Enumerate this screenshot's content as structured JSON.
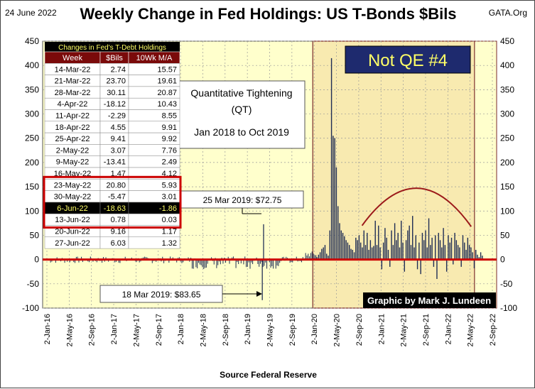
{
  "header": {
    "date": "24 June 2022",
    "title": "Weekly Change in Fed Holdings:  US T-Bonds $Bils",
    "source_tag": "GATA.Org"
  },
  "footer": {
    "source": "Source  Federal Reserve"
  },
  "colors": {
    "plot_background": "#ffffcc",
    "qe_background": "#f8eab0",
    "bars": "#1f2d55",
    "zero_line": "#cc0000",
    "arc": "#9c1a1a",
    "highlight_border": "#cc0000",
    "label_box_fill": "#1e2a6e",
    "label_box_text": "#ffff66"
  },
  "chart_data": {
    "type": "bar",
    "title": "Weekly Change in Fed Holdings:  US T-Bonds $Bils",
    "ylim": [
      -100,
      450
    ],
    "yticks": [
      -100,
      -50,
      0,
      50,
      100,
      150,
      200,
      250,
      300,
      350,
      400,
      450
    ],
    "x_tick_labels": [
      "2-Jan-16",
      "2-May-16",
      "2-Sep-16",
      "2-Jan-17",
      "2-May-17",
      "2-Sep-17",
      "2-Jan-18",
      "2-May-18",
      "2-Sep-18",
      "2-Jan-19",
      "2-May-19",
      "2-Sep-19",
      "2-Jan-20",
      "2-May-20",
      "2-Sep-20",
      "2-Jan-21",
      "2-May-21",
      "2-Sep-21",
      "2-Jan-22",
      "2-May-22",
      "2-Sep-22"
    ],
    "grid": true,
    "xlabel": "Source  Federal Reserve",
    "notable_weeks": [
      {
        "week": "18 Mar 2019",
        "value": -83.65
      },
      {
        "week": "25 Mar 2019",
        "value": 72.75
      }
    ],
    "covid_qe_values": [
      5,
      10,
      15,
      22,
      25,
      30,
      12,
      8,
      60,
      415,
      255,
      250,
      190,
      110,
      75,
      60,
      55,
      48,
      40,
      35,
      30,
      22,
      20,
      15,
      45,
      40,
      50,
      35,
      25,
      60,
      30,
      55,
      20,
      40,
      25,
      28,
      80,
      30,
      70,
      25,
      -20,
      35,
      65,
      45,
      20,
      -15,
      60,
      30,
      75,
      40,
      55,
      25,
      80,
      35,
      -25,
      40,
      60,
      70,
      30,
      90,
      25,
      50,
      -20,
      35,
      -30,
      55,
      40,
      60,
      25,
      85,
      30,
      45,
      -15,
      50,
      -40,
      55,
      40,
      25,
      65,
      30,
      -25,
      50,
      35,
      45,
      -10,
      55,
      40,
      30,
      25,
      -15,
      50,
      35,
      20,
      45,
      30,
      25,
      15,
      -18,
      20,
      10,
      5,
      15,
      8
    ]
  },
  "table": {
    "title": "Changes in Fed's T-Debt Holdings",
    "columns": [
      "Week",
      "$Bils",
      "10Wk M/A"
    ],
    "highlight_row": 10,
    "rows": [
      [
        "14-Mar-22",
        "2.74",
        "15.57"
      ],
      [
        "21-Mar-22",
        "23.70",
        "19.61"
      ],
      [
        "28-Mar-22",
        "30.11",
        "20.87"
      ],
      [
        "4-Apr-22",
        "-18.12",
        "10.43"
      ],
      [
        "11-Apr-22",
        "-2.29",
        "8.55"
      ],
      [
        "18-Apr-22",
        "4.55",
        "9.91"
      ],
      [
        "25-Apr-22",
        "9.41",
        "9.92"
      ],
      [
        "2-May-22",
        "3.07",
        "7.76"
      ],
      [
        "9-May-22",
        "-13.41",
        "2.49"
      ],
      [
        "16-May-22",
        "1.47",
        "4.12"
      ],
      [
        "23-May-22",
        "20.80",
        "5.93"
      ],
      [
        "30-May-22",
        "-5.47",
        "3.01"
      ],
      [
        "6-Jun-22",
        "-18.63",
        "-1.86"
      ],
      [
        "13-Jun-22",
        "0.78",
        "0.03"
      ],
      [
        "20-Jun-22",
        "9.16",
        "1.17"
      ],
      [
        "27-Jun-22",
        "6.03",
        "1.32"
      ]
    ]
  },
  "annotations": {
    "qt_box_line1": "Quantitative Tightening",
    "qt_box_line2": "(QT)",
    "qt_box_line3": "Jan 2018 to Oct 2019",
    "not_qe": "Not QE #4",
    "label_high": "25 Mar 2019:  $72.75",
    "label_low": "18 Mar 2019:  $83.65",
    "credit": "Graphic by Mark J. Lundeen"
  }
}
